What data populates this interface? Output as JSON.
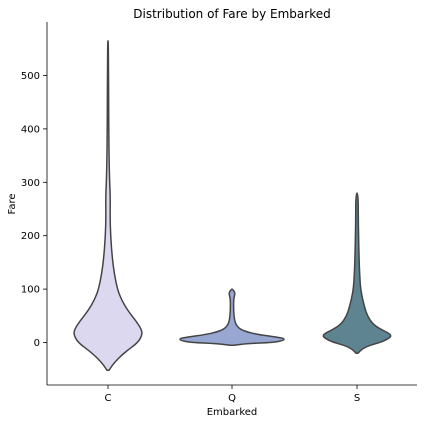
{
  "chart_data": {
    "type": "violin",
    "title": "Distribution of Fare by Embarked",
    "xlabel": "Embarked",
    "ylabel": "Fare",
    "categories": [
      "C",
      "Q",
      "S"
    ],
    "ylim": [
      -80,
      590
    ],
    "yticks": [
      0,
      100,
      200,
      300,
      400,
      500
    ],
    "colors": [
      "#dcd8f0",
      "#98a6d2",
      "#5e8391"
    ],
    "grid": false,
    "legend": "none",
    "violins": [
      {
        "category": "C",
        "profile": [
          [
            -52,
            0.02
          ],
          [
            -40,
            0.1
          ],
          [
            -20,
            0.3
          ],
          [
            0,
            0.58
          ],
          [
            15,
            0.66
          ],
          [
            25,
            0.64
          ],
          [
            40,
            0.54
          ],
          [
            60,
            0.38
          ],
          [
            80,
            0.26
          ],
          [
            100,
            0.18
          ],
          [
            130,
            0.12
          ],
          [
            160,
            0.08
          ],
          [
            200,
            0.05
          ],
          [
            240,
            0.04
          ],
          [
            270,
            0.045
          ],
          [
            300,
            0.03
          ],
          [
            350,
            0.02
          ],
          [
            400,
            0.015
          ],
          [
            450,
            0.012
          ],
          [
            500,
            0.01
          ],
          [
            565,
            0.005
          ]
        ]
      },
      {
        "category": "Q",
        "profile": [
          [
            -5,
            0.04
          ],
          [
            -2,
            0.3
          ],
          [
            0,
            0.8
          ],
          [
            4,
            1.0
          ],
          [
            8,
            1.0
          ],
          [
            10,
            0.85
          ],
          [
            15,
            0.5
          ],
          [
            20,
            0.28
          ],
          [
            25,
            0.16
          ],
          [
            30,
            0.1
          ],
          [
            40,
            0.05
          ],
          [
            60,
            0.03
          ],
          [
            80,
            0.03
          ],
          [
            88,
            0.05
          ],
          [
            92,
            0.055
          ],
          [
            96,
            0.04
          ],
          [
            100,
            0.01
          ]
        ]
      },
      {
        "category": "S",
        "profile": [
          [
            -20,
            0.02
          ],
          [
            -12,
            0.1
          ],
          [
            -5,
            0.25
          ],
          [
            0,
            0.45
          ],
          [
            8,
            0.62
          ],
          [
            13,
            0.66
          ],
          [
            18,
            0.6
          ],
          [
            25,
            0.45
          ],
          [
            35,
            0.3
          ],
          [
            50,
            0.2
          ],
          [
            65,
            0.15
          ],
          [
            80,
            0.11
          ],
          [
            100,
            0.07
          ],
          [
            130,
            0.05
          ],
          [
            160,
            0.04
          ],
          [
            200,
            0.03
          ],
          [
            240,
            0.025
          ],
          [
            280,
            0.02
          ]
        ]
      }
    ]
  }
}
